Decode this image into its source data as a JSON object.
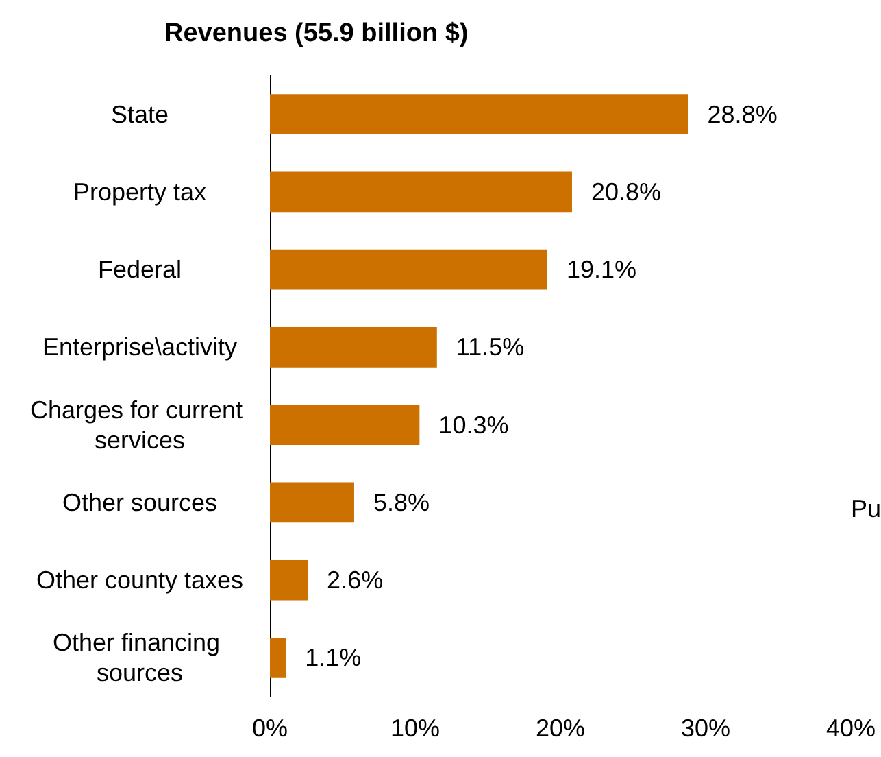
{
  "chart_data": {
    "type": "bar",
    "orientation": "horizontal",
    "title": "Revenues (55.9 billion $)",
    "categories": [
      "State",
      "Property tax",
      "Federal",
      "Enterprise\\activity",
      "Charges for current services",
      "Other sources",
      "Other county taxes",
      "Other financing sources"
    ],
    "values": [
      28.8,
      20.8,
      19.1,
      11.5,
      10.3,
      5.8,
      2.6,
      1.1
    ],
    "value_labels": [
      "28.8%",
      "20.8%",
      "19.1%",
      "11.5%",
      "10.3%",
      "5.8%",
      "2.6%",
      "1.1%"
    ],
    "color": "#cc7000",
    "xlim": [
      0,
      40
    ],
    "xticks": [
      {
        "value": 0,
        "label": "0%"
      },
      {
        "value": 10,
        "label": "10%"
      },
      {
        "value": 20,
        "label": "20%"
      },
      {
        "value": 30,
        "label": "30%"
      },
      {
        "value": 40,
        "label": "40%"
      }
    ],
    "grid": false,
    "annotations": [
      "Pu"
    ]
  }
}
